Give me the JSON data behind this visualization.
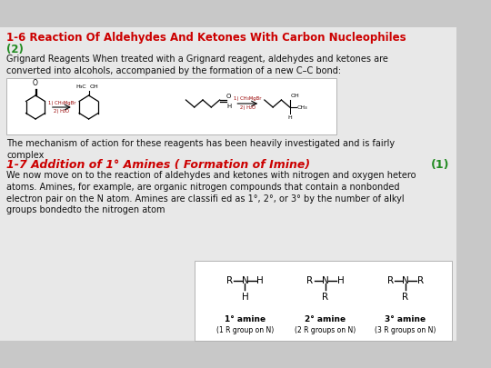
{
  "bg_color": "#c8c8c8",
  "slide_bg": "#e8e8e8",
  "title_line1": "1-6 Reaction Of Aldehydes And Ketones With Carbon Nucleophiles",
  "title_line2": "(2)",
  "title_color": "#cc0000",
  "title_number_color": "#228B22",
  "body_text1": "Grignard Reagents When treated with a Grignard reagent, aldehydes and ketones are\nconverted into alcohols, accompanied by the formation of a new C–C bond:",
  "body_text2": "The mechanism of action for these reagents has been heavily investigated and is fairly\ncomplex",
  "section_title": "1-7 Addition of 1° Amines ( Formation of Imine)",
  "section_number": "(1)",
  "section_color": "#cc0000",
  "section_number_color": "#228B22",
  "body_text3": "We now move on to the reaction of aldehydes and ketones with nitrogen and oxygen hetero\natoms. Amines, for example, are organic nitrogen compounds that contain a nonbonded\nelectron pair on the N atom. Amines are classifi ed as 1°, 2°, or 3° by the number of alkyl\ngroups bondedto the nitrogen atom",
  "text_color": "#111111",
  "font_size_title": 8.5,
  "font_size_body": 7.0,
  "font_size_section": 9.0
}
